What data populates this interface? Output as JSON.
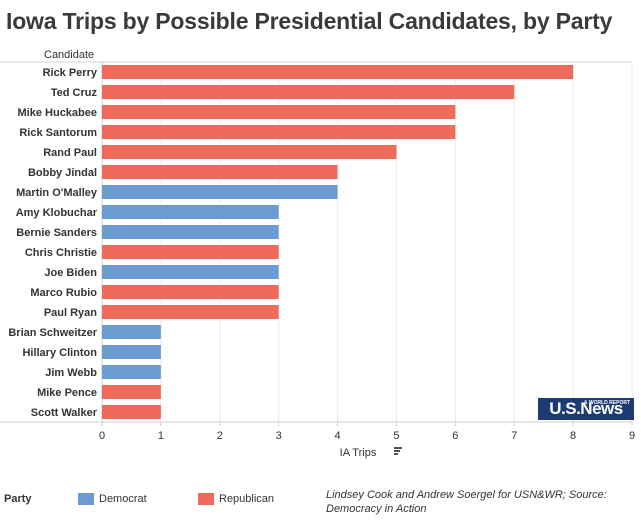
{
  "title": "Iowa Trips by Possible Presidential Candidates, by Party",
  "chart_data": {
    "type": "bar",
    "orientation": "horizontal",
    "row_header": "Candidate",
    "xlabel": "IA Trips",
    "xlim": [
      0,
      9
    ],
    "xticks": [
      0,
      1,
      2,
      3,
      4,
      5,
      6,
      7,
      8,
      9
    ],
    "rows": [
      {
        "name": "Rick Perry",
        "value": 8,
        "party": "Republican"
      },
      {
        "name": "Ted Cruz",
        "value": 7,
        "party": "Republican"
      },
      {
        "name": "Mike Huckabee",
        "value": 6,
        "party": "Republican"
      },
      {
        "name": "Rick Santorum",
        "value": 6,
        "party": "Republican"
      },
      {
        "name": "Rand Paul",
        "value": 5,
        "party": "Republican"
      },
      {
        "name": "Bobby Jindal",
        "value": 4,
        "party": "Republican"
      },
      {
        "name": "Martin O'Malley",
        "value": 4,
        "party": "Democrat"
      },
      {
        "name": "Amy Klobuchar",
        "value": 3,
        "party": "Democrat"
      },
      {
        "name": "Bernie Sanders",
        "value": 3,
        "party": "Democrat"
      },
      {
        "name": "Chris Christie",
        "value": 3,
        "party": "Republican"
      },
      {
        "name": "Joe Biden",
        "value": 3,
        "party": "Democrat"
      },
      {
        "name": "Marco Rubio",
        "value": 3,
        "party": "Republican"
      },
      {
        "name": "Paul Ryan",
        "value": 3,
        "party": "Republican"
      },
      {
        "name": "Brian Schweitzer",
        "value": 1,
        "party": "Democrat"
      },
      {
        "name": "Hillary Clinton",
        "value": 1,
        "party": "Democrat"
      },
      {
        "name": "Jim Webb",
        "value": 1,
        "party": "Democrat"
      },
      {
        "name": "Mike Pence",
        "value": 1,
        "party": "Republican"
      },
      {
        "name": "Scott Walker",
        "value": 1,
        "party": "Republican"
      }
    ],
    "colors": {
      "Democrat": "#6b9bd1",
      "Republican": "#ee6a5a"
    }
  },
  "legend": {
    "title": "Party",
    "democrat_label": "Democrat",
    "republican_label": "Republican"
  },
  "credit": "Lindsey Cook and Andrew Soergel for USN&WR; Source: Democracy in Action",
  "logo": {
    "main": "U.S.News",
    "small": "& WORLD REPORT"
  }
}
